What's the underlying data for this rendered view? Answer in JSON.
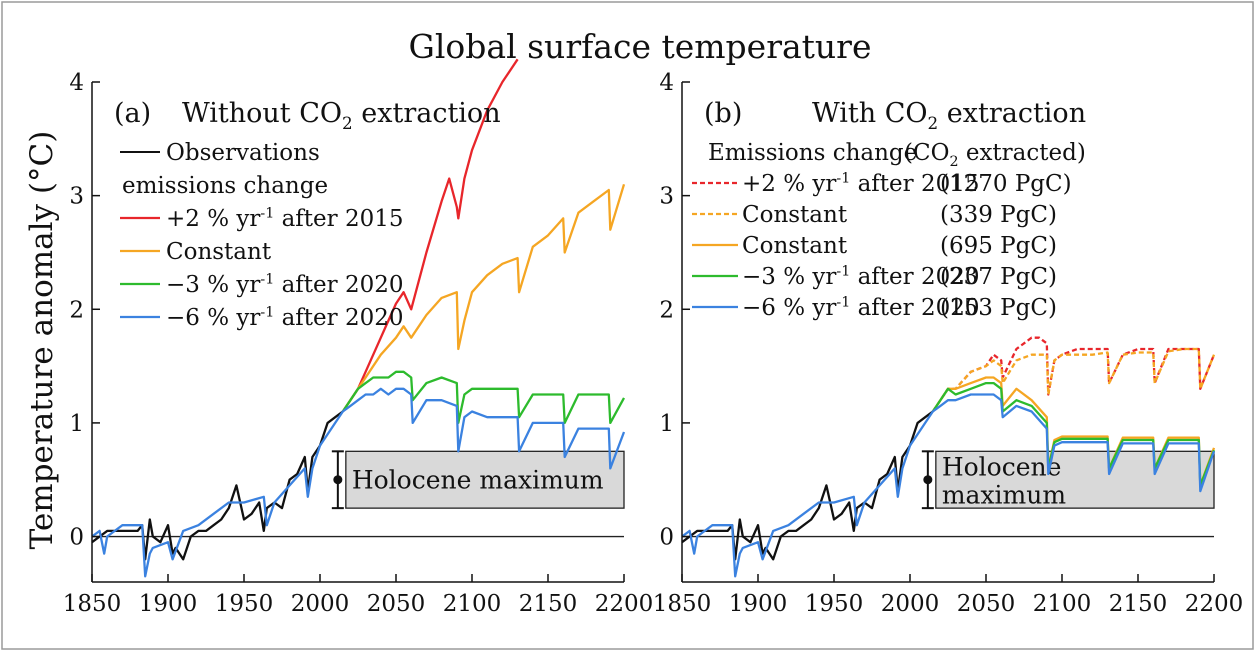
{
  "figure_title": "Global surface temperature",
  "y_axis_label": "Temperature anomaly (°C)",
  "colors": {
    "observations": "#111111",
    "plus2": "#e8262b",
    "constant": "#f5a623",
    "minus3": "#2dbb2d",
    "minus6": "#3b82e0",
    "holocene_fill": "#d9d9d9"
  },
  "chart_data": [
    {
      "type": "line",
      "panel_label": "(a)",
      "title": "Without CO2 extraction",
      "title_main": "Without CO",
      "title_sub": "2",
      "title_tail": " extraction",
      "xlim": [
        1850,
        2200
      ],
      "ylim": [
        -0.4,
        4
      ],
      "x_ticks": [
        "1850",
        "1900",
        "1950",
        "2000",
        "2050",
        "2100",
        "2150",
        "2200"
      ],
      "y_ticks": [
        "0",
        "1",
        "2",
        "3",
        "4"
      ],
      "legend": {
        "observations_label": "Observations",
        "group_header": "emissions change",
        "entries": [
          {
            "key": "plus2",
            "text": "+2 % yr",
            "sup": "-1",
            "tail": " after 2015"
          },
          {
            "key": "constant",
            "text": "Constant",
            "sup": "",
            "tail": ""
          },
          {
            "key": "minus3",
            "text": "−3 % yr",
            "sup": "-1",
            "tail": " after 2020"
          },
          {
            "key": "minus6",
            "text": "−6 % yr",
            "sup": "-1",
            "tail": " after 2020"
          }
        ]
      },
      "holocene": {
        "label": "Holocene maximum",
        "range": [
          0.25,
          0.75
        ],
        "x_start": 2017,
        "point": 0.5
      },
      "series": [
        {
          "name": "Observations",
          "key": "observations",
          "x": [
            1850,
            1860,
            1870,
            1880,
            1883,
            1885,
            1888,
            1890,
            1895,
            1900,
            1903,
            1905,
            1910,
            1915,
            1920,
            1925,
            1930,
            1935,
            1940,
            1945,
            1950,
            1955,
            1960,
            1963,
            1965,
            1970,
            1975,
            1980,
            1985,
            1990,
            1992,
            1995,
            2000,
            2005,
            2010,
            2015
          ],
          "y": [
            -0.05,
            0.05,
            0.05,
            0.05,
            0.1,
            -0.2,
            0.15,
            0.0,
            -0.05,
            0.1,
            -0.15,
            -0.1,
            -0.2,
            0.0,
            0.05,
            0.05,
            0.1,
            0.15,
            0.25,
            0.45,
            0.15,
            0.2,
            0.3,
            0.05,
            0.25,
            0.3,
            0.25,
            0.5,
            0.55,
            0.7,
            0.4,
            0.7,
            0.8,
            1.0,
            1.05,
            1.1
          ]
        },
        {
          "name": "+2 % yr-1 after 2015",
          "key": "plus2",
          "x": [
            2015,
            2020,
            2025,
            2030,
            2040,
            2050,
            2055,
            2060,
            2070,
            2080,
            2085,
            2090,
            2091,
            2095,
            2100,
            2110,
            2120,
            2130
          ],
          "y": [
            1.1,
            1.2,
            1.3,
            1.45,
            1.75,
            2.05,
            2.15,
            2.0,
            2.5,
            2.95,
            3.15,
            2.9,
            2.8,
            3.15,
            3.4,
            3.75,
            4.0,
            4.2
          ]
        },
        {
          "name": "Constant",
          "key": "constant",
          "x": [
            2015,
            2020,
            2025,
            2030,
            2040,
            2050,
            2055,
            2060,
            2070,
            2080,
            2090,
            2091,
            2095,
            2100,
            2110,
            2120,
            2130,
            2131,
            2140,
            2150,
            2160,
            2161,
            2170,
            2180,
            2190,
            2191,
            2200
          ],
          "y": [
            1.1,
            1.2,
            1.3,
            1.4,
            1.6,
            1.75,
            1.85,
            1.75,
            1.95,
            2.1,
            2.15,
            1.65,
            1.9,
            2.15,
            2.3,
            2.4,
            2.45,
            2.15,
            2.55,
            2.65,
            2.8,
            2.5,
            2.85,
            2.95,
            3.05,
            2.7,
            3.1
          ]
        },
        {
          "name": "−3 % yr-1 after 2020",
          "key": "minus3",
          "x": [
            2015,
            2020,
            2025,
            2030,
            2035,
            2040,
            2045,
            2050,
            2055,
            2060,
            2061,
            2070,
            2080,
            2090,
            2091,
            2095,
            2100,
            2110,
            2120,
            2130,
            2131,
            2140,
            2150,
            2160,
            2161,
            2170,
            2180,
            2190,
            2191,
            2200
          ],
          "y": [
            1.1,
            1.2,
            1.3,
            1.35,
            1.4,
            1.4,
            1.4,
            1.45,
            1.45,
            1.4,
            1.2,
            1.35,
            1.4,
            1.35,
            1.0,
            1.25,
            1.3,
            1.3,
            1.3,
            1.3,
            1.05,
            1.25,
            1.25,
            1.25,
            1.0,
            1.25,
            1.25,
            1.25,
            1.0,
            1.22
          ]
        },
        {
          "name": "−6 % yr-1 after 2020",
          "key": "minus6",
          "x": [
            1850,
            1855,
            1858,
            1860,
            1870,
            1880,
            1883,
            1885,
            1888,
            1890,
            1900,
            1903,
            1910,
            1920,
            1930,
            1940,
            1950,
            1963,
            1965,
            1970,
            1980,
            1990,
            1992,
            1995,
            2000,
            2010,
            2015,
            2020,
            2025,
            2030,
            2035,
            2040,
            2045,
            2050,
            2055,
            2060,
            2061,
            2070,
            2080,
            2090,
            2091,
            2095,
            2100,
            2110,
            2120,
            2130,
            2131,
            2140,
            2150,
            2160,
            2161,
            2170,
            2180,
            2190,
            2191,
            2200
          ],
          "y": [
            0.0,
            0.05,
            -0.15,
            0.0,
            0.1,
            0.1,
            0.1,
            -0.35,
            -0.15,
            -0.1,
            -0.05,
            -0.2,
            0.05,
            0.1,
            0.2,
            0.3,
            0.3,
            0.35,
            0.1,
            0.3,
            0.45,
            0.6,
            0.35,
            0.6,
            0.8,
            1.0,
            1.1,
            1.15,
            1.2,
            1.25,
            1.25,
            1.3,
            1.25,
            1.3,
            1.3,
            1.25,
            1.0,
            1.2,
            1.2,
            1.15,
            0.75,
            1.05,
            1.1,
            1.05,
            1.05,
            1.05,
            0.75,
            1.0,
            1.0,
            1.0,
            0.7,
            0.95,
            0.95,
            0.95,
            0.6,
            0.92
          ]
        }
      ]
    },
    {
      "type": "line",
      "panel_label": "(b)",
      "title": "With CO2 extraction",
      "title_main": "With CO",
      "title_sub": "2",
      "title_tail": " extraction",
      "xlim": [
        1850,
        2200
      ],
      "ylim": [
        -0.4,
        4
      ],
      "x_ticks": [
        "1850",
        "1900",
        "1950",
        "2000",
        "2050",
        "2100",
        "2150",
        "2200"
      ],
      "y_ticks": [
        "0",
        "1",
        "2",
        "3",
        "4"
      ],
      "legend": {
        "header_left": "Emissions change",
        "header_right_main": "(CO",
        "header_right_sub": "2",
        "header_right_tail": " extracted)",
        "entries": [
          {
            "key": "plus2",
            "dashed": true,
            "text": "+2 % yr",
            "sup": "-1",
            "tail": " after 2015",
            "amount": "(1270 PgC)"
          },
          {
            "key": "constant",
            "dashed": true,
            "text": "Constant",
            "sup": "",
            "tail": "",
            "amount": "(339 PgC)"
          },
          {
            "key": "constant",
            "dashed": false,
            "text": "Constant",
            "sup": "",
            "tail": "",
            "amount": "(695 PgC)"
          },
          {
            "key": "minus3",
            "dashed": false,
            "text": "−3 % yr",
            "sup": "-1",
            "tail": " after 2020",
            "amount": "(237 PgC)"
          },
          {
            "key": "minus6",
            "dashed": false,
            "text": "−6 % yr",
            "sup": "-1",
            "tail": " after 2020",
            "amount": "(153 PgC)"
          }
        ]
      },
      "holocene": {
        "label_line1": "Holocene",
        "label_line2": "maximum",
        "range": [
          0.25,
          0.75
        ],
        "x_start": 2017,
        "point": 0.5
      },
      "series": [
        {
          "name": "Observations",
          "key": "observations",
          "dashed": false,
          "x": [
            1850,
            1860,
            1870,
            1880,
            1883,
            1885,
            1888,
            1890,
            1895,
            1900,
            1903,
            1905,
            1910,
            1915,
            1920,
            1925,
            1930,
            1935,
            1940,
            1945,
            1950,
            1955,
            1960,
            1963,
            1965,
            1970,
            1975,
            1980,
            1985,
            1990,
            1992,
            1995,
            2000,
            2005,
            2010,
            2015
          ],
          "y": [
            -0.05,
            0.05,
            0.05,
            0.05,
            0.1,
            -0.2,
            0.15,
            0.0,
            -0.05,
            0.1,
            -0.15,
            -0.1,
            -0.2,
            0.0,
            0.05,
            0.05,
            0.1,
            0.15,
            0.25,
            0.45,
            0.15,
            0.2,
            0.3,
            0.05,
            0.25,
            0.3,
            0.25,
            0.5,
            0.55,
            0.7,
            0.4,
            0.7,
            0.8,
            1.0,
            1.05,
            1.1
          ]
        },
        {
          "name": "+2 % yr-1 after 2015 (1270 PgC)",
          "key": "plus2",
          "dashed": true,
          "x": [
            2015,
            2020,
            2025,
            2030,
            2040,
            2050,
            2055,
            2060,
            2061,
            2070,
            2080,
            2085,
            2090,
            2091,
            2095,
            2100,
            2110,
            2120,
            2130,
            2131,
            2140,
            2150,
            2160,
            2161,
            2170,
            2180,
            2190,
            2191,
            2200
          ],
          "y": [
            1.1,
            1.2,
            1.3,
            1.3,
            1.45,
            1.5,
            1.6,
            1.55,
            1.4,
            1.65,
            1.75,
            1.75,
            1.7,
            1.25,
            1.55,
            1.6,
            1.65,
            1.65,
            1.65,
            1.35,
            1.6,
            1.65,
            1.65,
            1.35,
            1.65,
            1.65,
            1.65,
            1.3,
            1.6
          ]
        },
        {
          "name": "Constant (339 PgC)",
          "key": "constant",
          "dashed": true,
          "x": [
            2015,
            2020,
            2025,
            2030,
            2040,
            2050,
            2055,
            2060,
            2061,
            2070,
            2080,
            2090,
            2091,
            2095,
            2100,
            2110,
            2120,
            2130,
            2131,
            2140,
            2150,
            2160,
            2161,
            2170,
            2180,
            2190,
            2191,
            2200
          ],
          "y": [
            1.1,
            1.2,
            1.3,
            1.3,
            1.45,
            1.5,
            1.55,
            1.5,
            1.35,
            1.55,
            1.6,
            1.6,
            1.25,
            1.55,
            1.6,
            1.6,
            1.6,
            1.62,
            1.35,
            1.6,
            1.62,
            1.62,
            1.35,
            1.63,
            1.65,
            1.65,
            1.3,
            1.6
          ]
        },
        {
          "name": "Constant (695 PgC)",
          "key": "constant",
          "dashed": false,
          "x": [
            2015,
            2020,
            2025,
            2030,
            2040,
            2050,
            2055,
            2060,
            2061,
            2070,
            2080,
            2090,
            2091,
            2095,
            2100,
            2110,
            2120,
            2130,
            2131,
            2140,
            2150,
            2160,
            2161,
            2170,
            2180,
            2190,
            2191,
            2200
          ],
          "y": [
            1.1,
            1.2,
            1.3,
            1.3,
            1.35,
            1.4,
            1.4,
            1.35,
            1.15,
            1.3,
            1.2,
            1.05,
            0.6,
            0.85,
            0.88,
            0.88,
            0.88,
            0.88,
            0.6,
            0.87,
            0.87,
            0.87,
            0.6,
            0.87,
            0.87,
            0.87,
            0.45,
            0.78
          ]
        },
        {
          "name": "−3 % yr-1 after 2020 (237 PgC)",
          "key": "minus3",
          "dashed": false,
          "x": [
            2015,
            2020,
            2025,
            2030,
            2040,
            2050,
            2055,
            2060,
            2061,
            2070,
            2080,
            2090,
            2091,
            2095,
            2100,
            2110,
            2120,
            2130,
            2131,
            2140,
            2150,
            2160,
            2161,
            2170,
            2180,
            2190,
            2191,
            2200
          ],
          "y": [
            1.1,
            1.2,
            1.3,
            1.25,
            1.3,
            1.35,
            1.35,
            1.3,
            1.1,
            1.2,
            1.15,
            1.0,
            0.6,
            0.83,
            0.86,
            0.86,
            0.86,
            0.86,
            0.6,
            0.85,
            0.85,
            0.85,
            0.6,
            0.85,
            0.85,
            0.85,
            0.45,
            0.76
          ]
        },
        {
          "name": "−6 % yr-1 after 2020 (153 PgC)",
          "key": "minus6",
          "dashed": false,
          "x": [
            1850,
            1855,
            1858,
            1860,
            1870,
            1880,
            1883,
            1885,
            1888,
            1890,
            1900,
            1903,
            1910,
            1920,
            1930,
            1940,
            1950,
            1963,
            1965,
            1970,
            1980,
            1990,
            1992,
            1995,
            2000,
            2010,
            2015,
            2020,
            2025,
            2030,
            2040,
            2050,
            2055,
            2060,
            2061,
            2070,
            2080,
            2090,
            2091,
            2095,
            2100,
            2110,
            2120,
            2130,
            2131,
            2140,
            2150,
            2160,
            2161,
            2170,
            2180,
            2190,
            2191,
            2200
          ],
          "y": [
            0.0,
            0.05,
            -0.15,
            0.0,
            0.1,
            0.1,
            0.1,
            -0.35,
            -0.15,
            -0.1,
            -0.05,
            -0.2,
            0.05,
            0.1,
            0.2,
            0.3,
            0.3,
            0.35,
            0.1,
            0.3,
            0.45,
            0.6,
            0.35,
            0.6,
            0.8,
            1.0,
            1.1,
            1.15,
            1.2,
            1.2,
            1.25,
            1.25,
            1.25,
            1.2,
            1.05,
            1.15,
            1.1,
            0.95,
            0.55,
            0.8,
            0.83,
            0.83,
            0.83,
            0.83,
            0.55,
            0.82,
            0.82,
            0.82,
            0.55,
            0.82,
            0.82,
            0.82,
            0.4,
            0.75
          ]
        }
      ]
    }
  ]
}
